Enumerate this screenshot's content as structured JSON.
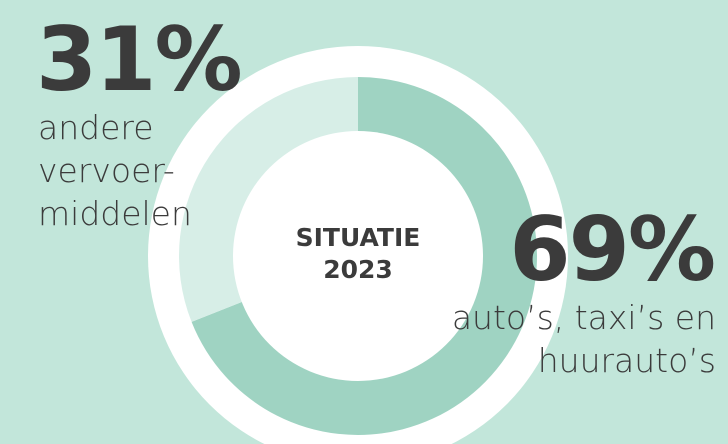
{
  "chart_data": {
    "type": "donut",
    "center_label": "SITUATIE\n2023",
    "categories": [
      "auto’s, taxi’s en\nhuurauto’s",
      "andere\nvervoer-\nmiddelen"
    ],
    "values": [
      69,
      31
    ],
    "value_labels": [
      "69%",
      "31%"
    ],
    "colors": [
      "#9fd3c2",
      "#d7eee7"
    ]
  }
}
